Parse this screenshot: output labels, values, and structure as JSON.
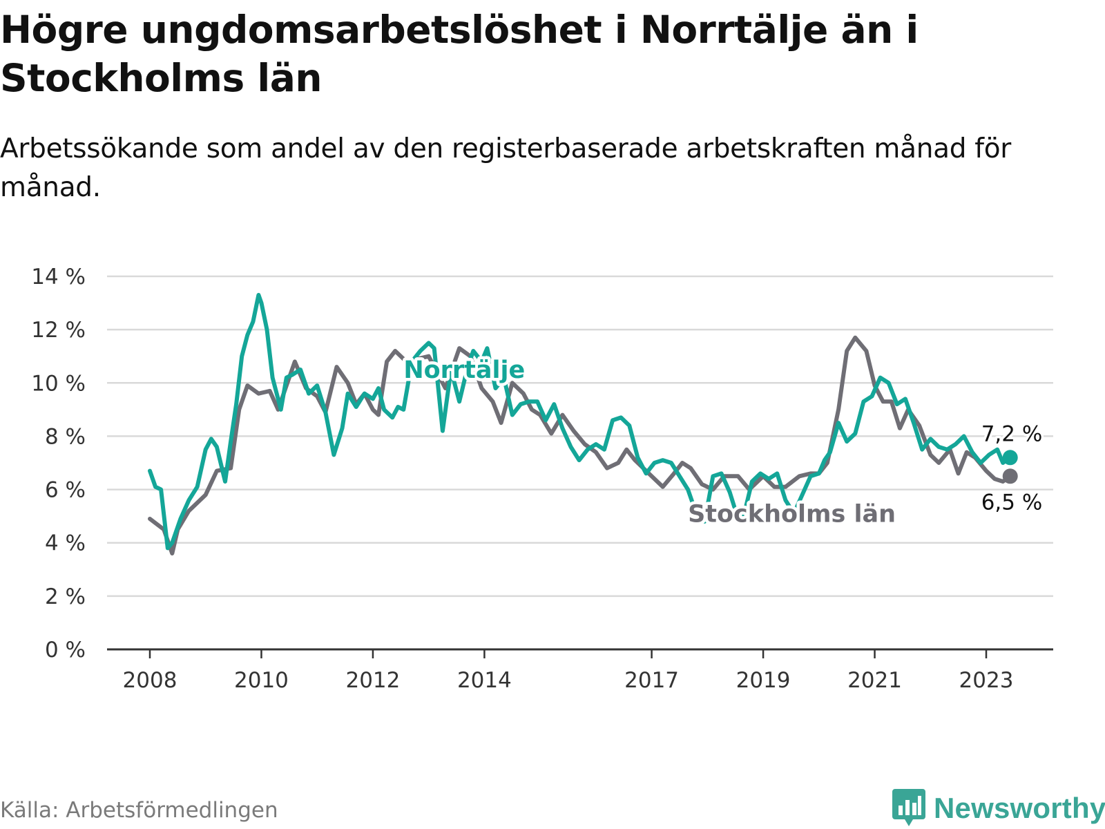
{
  "header": {
    "title": "Högre ungdomsarbetslöshet i Norrtälje än i Stockholms län",
    "subtitle": "Arbetssökande som andel av den registerbaserade arbetskraften månad för månad."
  },
  "footer": {
    "source": "Källa: Arbetsförmedlingen",
    "brand": "Newsworthy",
    "brand_icon": "bar-chart-icon"
  },
  "colors": {
    "norrtalje": "#14a698",
    "stockholm": "#6f6e75",
    "grid": "#d9d9d9",
    "axis": "#333333",
    "brand": "#3aa596"
  },
  "chart_data": {
    "type": "line",
    "title": "Högre ungdomsarbetslöshet i Norrtälje än i Stockholms län",
    "xlabel": "",
    "ylabel": "",
    "ylim": [
      0,
      14
    ],
    "xlim": [
      2007.5,
      2023.75
    ],
    "yticks": [
      0,
      2,
      4,
      6,
      8,
      10,
      12,
      14
    ],
    "ytick_labels": [
      "0 %",
      "2 %",
      "4 %",
      "6 %",
      "8 %",
      "10 %",
      "12 %",
      "14 %"
    ],
    "xticks": [
      2008,
      2010,
      2012,
      2014,
      2017,
      2019,
      2021,
      2023
    ],
    "xtick_labels": [
      "2008",
      "2010",
      "2012",
      "2014",
      "2017",
      "2019",
      "2021",
      "2023"
    ],
    "grid": true,
    "series": [
      {
        "name": "Stockholms län",
        "key": "stockholm",
        "x": [
          2008.0,
          2008.25,
          2008.4,
          2008.5,
          2008.7,
          2009.0,
          2009.2,
          2009.45,
          2009.6,
          2009.75,
          2009.95,
          2010.15,
          2010.3,
          2010.5,
          2010.6,
          2010.8,
          2011.0,
          2011.15,
          2011.35,
          2011.55,
          2011.7,
          2011.85,
          2012.0,
          2012.1,
          2012.25,
          2012.4,
          2012.6,
          2012.8,
          2013.0,
          2013.3,
          2013.55,
          2013.75,
          2013.95,
          2014.15,
          2014.3,
          2014.5,
          2014.7,
          2014.85,
          2015.0,
          2015.2,
          2015.4,
          2015.6,
          2015.8,
          2016.0,
          2016.2,
          2016.4,
          2016.55,
          2016.7,
          2016.85,
          2017.0,
          2017.2,
          2017.4,
          2017.55,
          2017.7,
          2017.9,
          2018.1,
          2018.3,
          2018.55,
          2018.75,
          2019.0,
          2019.2,
          2019.4,
          2019.65,
          2019.85,
          2020.0,
          2020.15,
          2020.35,
          2020.5,
          2020.65,
          2020.85,
          2021.0,
          2021.15,
          2021.3,
          2021.45,
          2021.6,
          2021.8,
          2022.0,
          2022.15,
          2022.35,
          2022.5,
          2022.65,
          2022.8,
          2023.0,
          2023.15,
          2023.3,
          2023.43
        ],
        "values": [
          4.9,
          4.5,
          3.6,
          4.5,
          5.2,
          5.8,
          6.7,
          6.8,
          9.0,
          9.9,
          9.6,
          9.7,
          9.0,
          10.2,
          10.8,
          9.8,
          9.5,
          8.9,
          10.6,
          10.0,
          9.2,
          9.6,
          9.0,
          8.8,
          10.8,
          11.2,
          10.8,
          10.9,
          11.0,
          9.8,
          11.3,
          11.0,
          9.8,
          9.3,
          8.5,
          10.0,
          9.6,
          9.0,
          8.8,
          8.1,
          8.8,
          8.2,
          7.7,
          7.4,
          6.8,
          7.0,
          7.5,
          7.1,
          6.8,
          6.5,
          6.1,
          6.6,
          7.0,
          6.8,
          6.2,
          6.0,
          6.5,
          6.5,
          6.0,
          6.5,
          6.1,
          6.1,
          6.5,
          6.6,
          6.6,
          7.0,
          9.0,
          11.2,
          11.7,
          11.2,
          9.9,
          9.3,
          9.3,
          8.3,
          9.0,
          8.4,
          7.3,
          7.0,
          7.5,
          6.6,
          7.4,
          7.2,
          6.7,
          6.4,
          6.3,
          6.5
        ]
      },
      {
        "name": "Norrtälje",
        "key": "norrtalje",
        "x": [
          2008.0,
          2008.1,
          2008.2,
          2008.32,
          2008.4,
          2008.55,
          2008.7,
          2008.85,
          2009.0,
          2009.1,
          2009.2,
          2009.35,
          2009.45,
          2009.55,
          2009.65,
          2009.75,
          2009.85,
          2009.95,
          2010.0,
          2010.1,
          2010.2,
          2010.35,
          2010.45,
          2010.55,
          2010.7,
          2010.85,
          2011.0,
          2011.15,
          2011.3,
          2011.45,
          2011.55,
          2011.7,
          2011.85,
          2012.0,
          2012.1,
          2012.2,
          2012.35,
          2012.45,
          2012.55,
          2012.7,
          2012.85,
          2013.0,
          2013.1,
          2013.25,
          2013.4,
          2013.55,
          2013.7,
          2013.8,
          2013.95,
          2014.05,
          2014.2,
          2014.35,
          2014.5,
          2014.65,
          2014.8,
          2014.95,
          2015.1,
          2015.25,
          2015.4,
          2015.55,
          2015.7,
          2015.85,
          2016.0,
          2016.15,
          2016.3,
          2016.45,
          2016.6,
          2016.75,
          2016.9,
          2017.05,
          2017.2,
          2017.35,
          2017.5,
          2017.65,
          2017.8,
          2017.95,
          2018.1,
          2018.25,
          2018.4,
          2018.55,
          2018.65,
          2018.8,
          2018.95,
          2019.1,
          2019.25,
          2019.4,
          2019.55,
          2019.7,
          2019.85,
          2020.0,
          2020.1,
          2020.2,
          2020.35,
          2020.5,
          2020.65,
          2020.8,
          2020.95,
          2021.1,
          2021.25,
          2021.4,
          2021.55,
          2021.7,
          2021.85,
          2022.0,
          2022.15,
          2022.3,
          2022.45,
          2022.6,
          2022.75,
          2022.9,
          2023.05,
          2023.2,
          2023.3,
          2023.43
        ],
        "values": [
          6.7,
          6.1,
          6.0,
          3.8,
          4.0,
          4.9,
          5.6,
          6.1,
          7.5,
          7.9,
          7.6,
          6.3,
          7.8,
          9.2,
          11.0,
          11.8,
          12.3,
          13.3,
          13.0,
          12.0,
          10.2,
          9.0,
          10.2,
          10.3,
          10.5,
          9.6,
          9.9,
          8.9,
          7.3,
          8.3,
          9.6,
          9.1,
          9.6,
          9.4,
          9.8,
          9.0,
          8.7,
          9.1,
          9.0,
          10.8,
          11.2,
          11.5,
          11.3,
          8.2,
          10.5,
          9.3,
          10.6,
          11.2,
          10.8,
          11.3,
          9.8,
          10.2,
          8.8,
          9.2,
          9.3,
          9.3,
          8.6,
          9.2,
          8.3,
          7.6,
          7.1,
          7.5,
          7.7,
          7.5,
          8.6,
          8.7,
          8.4,
          7.2,
          6.6,
          7.0,
          7.1,
          7.0,
          6.5,
          6.0,
          5.1,
          4.8,
          6.5,
          6.6,
          5.9,
          4.9,
          5.0,
          6.3,
          6.6,
          6.4,
          6.6,
          5.6,
          5.1,
          5.8,
          6.5,
          6.6,
          7.1,
          7.4,
          8.5,
          7.8,
          8.1,
          9.3,
          9.5,
          10.2,
          10.0,
          9.2,
          9.4,
          8.5,
          7.5,
          7.9,
          7.6,
          7.5,
          7.7,
          8.0,
          7.4,
          7.0,
          7.3,
          7.5,
          7.0,
          7.2
        ]
      }
    ],
    "annotations": [
      {
        "text": "Norrtälje",
        "series": "norrtalje",
        "x": 2012.55,
        "y": 10.5
      },
      {
        "text": "Stockholms län",
        "series": "stockholm",
        "x": 2017.65,
        "y": 5.1
      }
    ],
    "end_labels": [
      {
        "series": "norrtalje",
        "value": 7.2,
        "text": "7,2 %"
      },
      {
        "series": "stockholm",
        "value": 6.5,
        "text": "6,5 %"
      }
    ]
  }
}
